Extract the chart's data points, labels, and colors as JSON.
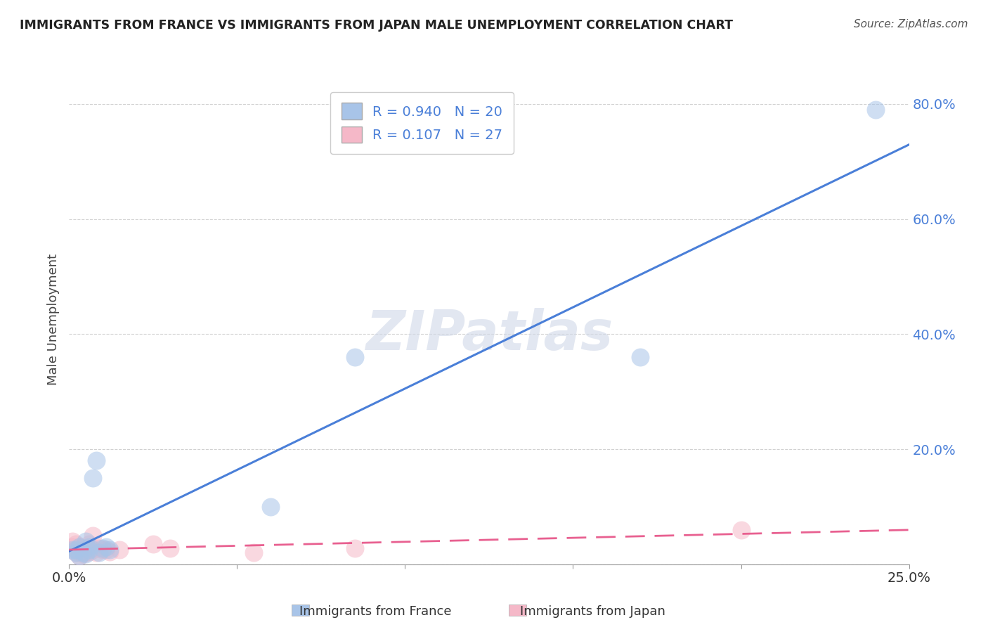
{
  "title": "IMMIGRANTS FROM FRANCE VS IMMIGRANTS FROM JAPAN MALE UNEMPLOYMENT CORRELATION CHART",
  "source": "Source: ZipAtlas.com",
  "ylabel": "Male Unemployment",
  "xlim": [
    0.0,
    0.25
  ],
  "ylim": [
    0.0,
    0.85
  ],
  "xticks": [
    0.0,
    0.05,
    0.1,
    0.15,
    0.2,
    0.25
  ],
  "yticks": [
    0.0,
    0.2,
    0.4,
    0.6,
    0.8
  ],
  "ytick_labels": [
    "",
    "20.0%",
    "40.0%",
    "60.0%",
    "80.0%"
  ],
  "france_color": "#a8c4e8",
  "japan_color": "#f5b8c8",
  "france_line_color": "#4a7fd8",
  "japan_line_color": "#e86090",
  "france_R": 0.94,
  "france_N": 20,
  "japan_R": 0.107,
  "japan_N": 27,
  "france_x": [
    0.001,
    0.002,
    0.002,
    0.003,
    0.003,
    0.004,
    0.005,
    0.005,
    0.006,
    0.006,
    0.007,
    0.008,
    0.009,
    0.01,
    0.011,
    0.012,
    0.06,
    0.085,
    0.17,
    0.24
  ],
  "france_y": [
    0.025,
    0.02,
    0.025,
    0.015,
    0.03,
    0.02,
    0.018,
    0.04,
    0.03,
    0.025,
    0.15,
    0.18,
    0.02,
    0.028,
    0.03,
    0.025,
    0.1,
    0.36,
    0.36,
    0.79
  ],
  "japan_x": [
    0.001,
    0.001,
    0.002,
    0.002,
    0.002,
    0.003,
    0.003,
    0.003,
    0.004,
    0.004,
    0.005,
    0.005,
    0.006,
    0.006,
    0.007,
    0.007,
    0.008,
    0.009,
    0.01,
    0.011,
    0.012,
    0.015,
    0.025,
    0.03,
    0.055,
    0.085,
    0.2
  ],
  "japan_y": [
    0.03,
    0.04,
    0.02,
    0.025,
    0.035,
    0.015,
    0.022,
    0.03,
    0.018,
    0.025,
    0.02,
    0.028,
    0.022,
    0.035,
    0.025,
    0.05,
    0.02,
    0.028,
    0.025,
    0.025,
    0.022,
    0.025,
    0.035,
    0.028,
    0.02,
    0.028,
    0.06
  ],
  "watermark": "ZIPatlas",
  "background_color": "#ffffff",
  "grid_color": "#cccccc"
}
